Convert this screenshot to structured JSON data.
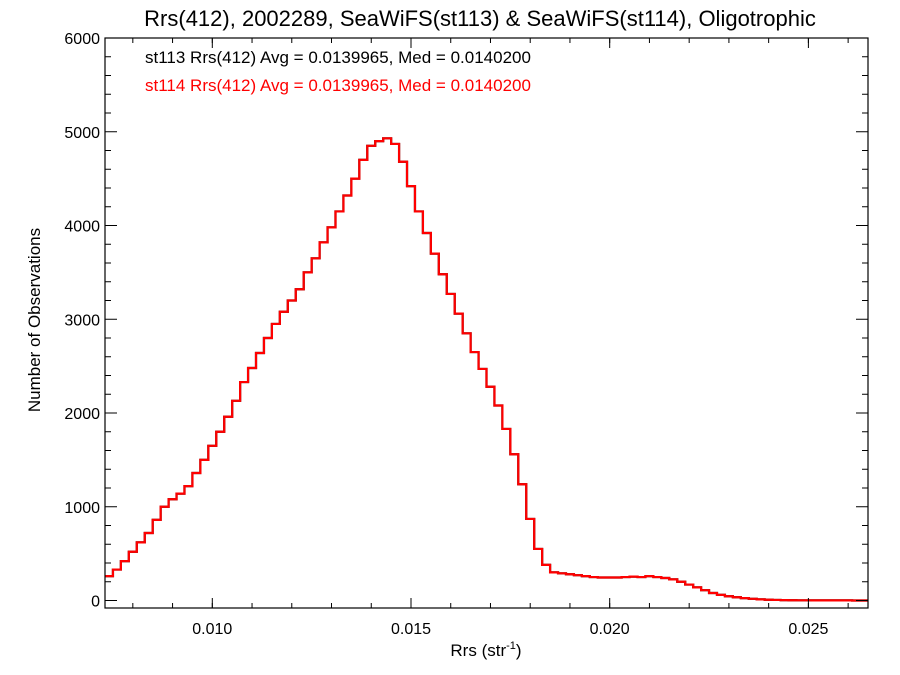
{
  "chart_data": {
    "type": "line",
    "step": true,
    "title": "Rrs(412), 2002289, SeaWiFS(st113) & SeaWiFS(st114), Oligotrophic",
    "xlabel": "Rrs (str",
    "xlabel_sup": "-1",
    "xlabel_end": ")",
    "ylabel": "Number of Observations",
    "xlim": [
      0.0073,
      0.0265
    ],
    "ylim": [
      -80,
      6000
    ],
    "x_ticks": [
      0.01,
      0.015,
      0.02,
      0.025
    ],
    "x_tick_labels": [
      "0.010",
      "0.015",
      "0.020",
      "0.025"
    ],
    "y_ticks": [
      0,
      1000,
      2000,
      3000,
      4000,
      5000,
      6000
    ],
    "y_tick_labels": [
      "0",
      "1000",
      "2000",
      "3000",
      "4000",
      "5000",
      "6000"
    ],
    "grid": false,
    "annotations": [
      {
        "text": "st113 Rrs(412) Avg = 0.0139965, Med = 0.0140200",
        "color": "#000000"
      },
      {
        "text": "st114 Rrs(412) Avg = 0.0139965, Med = 0.0140200",
        "color": "#ff0000"
      }
    ],
    "series": [
      {
        "color": "#000000",
        "x": [
          0.0073,
          0.0075,
          0.0077,
          0.0079,
          0.0081,
          0.0083,
          0.0085,
          0.0087,
          0.0089,
          0.0091,
          0.0093,
          0.0095,
          0.0097,
          0.0099,
          0.0101,
          0.0103,
          0.0105,
          0.0107,
          0.0109,
          0.0111,
          0.0113,
          0.0115,
          0.0117,
          0.0119,
          0.0121,
          0.0123,
          0.0125,
          0.0127,
          0.0129,
          0.0131,
          0.0133,
          0.0135,
          0.0137,
          0.0139,
          0.0141,
          0.0143,
          0.0145,
          0.0147,
          0.0149,
          0.0151,
          0.0153,
          0.0155,
          0.0157,
          0.0159,
          0.0161,
          0.0163,
          0.0165,
          0.0167,
          0.0169,
          0.0171,
          0.0173,
          0.0175,
          0.0177,
          0.0179,
          0.0181,
          0.0183,
          0.0185,
          0.0187,
          0.0189,
          0.0191,
          0.0193,
          0.0195,
          0.0197,
          0.0199,
          0.0201,
          0.0203,
          0.0205,
          0.0207,
          0.0209,
          0.0211,
          0.0213,
          0.0215,
          0.0217,
          0.0219,
          0.0221,
          0.0223,
          0.0225,
          0.0227,
          0.0229,
          0.0231,
          0.0233,
          0.0235,
          0.0237,
          0.0239,
          0.0241,
          0.0243,
          0.0245,
          0.0247,
          0.0249,
          0.0251,
          0.0253,
          0.0255,
          0.0257,
          0.0259,
          0.0261,
          0.0263,
          0.0265
        ],
        "y": [
          260,
          330,
          420,
          520,
          620,
          720,
          860,
          1000,
          1080,
          1140,
          1220,
          1360,
          1500,
          1650,
          1800,
          1960,
          2130,
          2330,
          2480,
          2640,
          2800,
          2950,
          3080,
          3200,
          3320,
          3500,
          3650,
          3820,
          3980,
          4150,
          4320,
          4500,
          4700,
          4850,
          4900,
          4930,
          4870,
          4680,
          4420,
          4150,
          3920,
          3700,
          3480,
          3270,
          3060,
          2850,
          2650,
          2470,
          2280,
          2080,
          1830,
          1560,
          1240,
          870,
          550,
          380,
          300,
          290,
          280,
          270,
          260,
          250,
          245,
          245,
          245,
          250,
          255,
          250,
          260,
          250,
          240,
          225,
          200,
          170,
          140,
          110,
          80,
          60,
          45,
          35,
          25,
          18,
          12,
          8,
          6,
          4,
          3,
          2,
          2,
          1,
          1,
          1,
          1,
          1,
          0,
          0,
          0
        ]
      },
      {
        "color": "#ff0000",
        "x": [
          0.0073,
          0.0075,
          0.0077,
          0.0079,
          0.0081,
          0.0083,
          0.0085,
          0.0087,
          0.0089,
          0.0091,
          0.0093,
          0.0095,
          0.0097,
          0.0099,
          0.0101,
          0.0103,
          0.0105,
          0.0107,
          0.0109,
          0.0111,
          0.0113,
          0.0115,
          0.0117,
          0.0119,
          0.0121,
          0.0123,
          0.0125,
          0.0127,
          0.0129,
          0.0131,
          0.0133,
          0.0135,
          0.0137,
          0.0139,
          0.0141,
          0.0143,
          0.0145,
          0.0147,
          0.0149,
          0.0151,
          0.0153,
          0.0155,
          0.0157,
          0.0159,
          0.0161,
          0.0163,
          0.0165,
          0.0167,
          0.0169,
          0.0171,
          0.0173,
          0.0175,
          0.0177,
          0.0179,
          0.0181,
          0.0183,
          0.0185,
          0.0187,
          0.0189,
          0.0191,
          0.0193,
          0.0195,
          0.0197,
          0.0199,
          0.0201,
          0.0203,
          0.0205,
          0.0207,
          0.0209,
          0.0211,
          0.0213,
          0.0215,
          0.0217,
          0.0219,
          0.0221,
          0.0223,
          0.0225,
          0.0227,
          0.0229,
          0.0231,
          0.0233,
          0.0235,
          0.0237,
          0.0239,
          0.0241,
          0.0243,
          0.0245,
          0.0247,
          0.0249,
          0.0251,
          0.0253,
          0.0255,
          0.0257,
          0.0259,
          0.0261,
          0.0263,
          0.0265
        ],
        "y": [
          260,
          330,
          420,
          520,
          620,
          720,
          860,
          1000,
          1080,
          1140,
          1220,
          1360,
          1500,
          1650,
          1800,
          1960,
          2130,
          2330,
          2480,
          2640,
          2800,
          2950,
          3080,
          3200,
          3320,
          3500,
          3650,
          3820,
          3980,
          4150,
          4320,
          4500,
          4700,
          4850,
          4900,
          4930,
          4870,
          4680,
          4420,
          4150,
          3920,
          3700,
          3480,
          3270,
          3060,
          2850,
          2650,
          2470,
          2280,
          2080,
          1830,
          1560,
          1240,
          870,
          550,
          380,
          300,
          290,
          280,
          270,
          260,
          250,
          245,
          245,
          245,
          250,
          255,
          250,
          260,
          250,
          240,
          225,
          200,
          170,
          140,
          110,
          80,
          60,
          45,
          35,
          25,
          18,
          12,
          8,
          6,
          4,
          3,
          2,
          2,
          1,
          1,
          1,
          1,
          1,
          0,
          0,
          0
        ]
      }
    ]
  }
}
